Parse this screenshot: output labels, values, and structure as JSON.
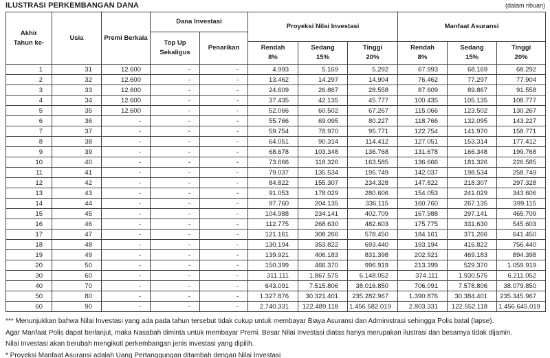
{
  "page": {
    "title": "ILUSTRASI PERKEMBANGAN DANA",
    "unit_note": "(dalam ribuan)"
  },
  "table": {
    "header": {
      "col_year_line1": "Akhir",
      "col_year_line2": "Tahun ke-",
      "col_age": "Usia",
      "col_premium": "Premi Berkala",
      "group_dana": "Dana Investasi",
      "col_topup_line1": "Top Up",
      "col_topup_line2": "Sekaligus",
      "col_penarikan": "Penarikan",
      "group_proyeksi": "Proyeksi Nilai Investasi",
      "group_manfaat": "Manfaat Asuransi",
      "sub_rendah": "Rendah",
      "sub_sedang": "Sedang",
      "sub_tinggi": "Tinggi",
      "pct_low": "8%",
      "pct_mid": "15%",
      "pct_high": "20%"
    },
    "column_keys": [
      "year",
      "age",
      "premium",
      "top-up",
      "withdrawal",
      "proj-low-8",
      "proj-mid-15",
      "proj-high-20",
      "benefit-low-8",
      "benefit-mid-15",
      "benefit-high-20"
    ],
    "rows": [
      [
        "1",
        "31",
        "12.600",
        "-",
        "-",
        "4.993",
        "5.169",
        "5.292",
        "67.993",
        "68.169",
        "68.292"
      ],
      [
        "2",
        "32",
        "12.600",
        "-",
        "-",
        "13.462",
        "14.297",
        "14.904",
        "76.462",
        "77.297",
        "77.904"
      ],
      [
        "3",
        "33",
        "12.600",
        "-",
        "-",
        "24.609",
        "26.867",
        "28.558",
        "87.609",
        "89.867",
        "91.558"
      ],
      [
        "4",
        "34",
        "12.600",
        "-",
        "-",
        "37.435",
        "42.135",
        "45.777",
        "100.435",
        "105.135",
        "108.777"
      ],
      [
        "5",
        "35",
        "12.600",
        "-",
        "-",
        "52.066",
        "60.502",
        "67.267",
        "115.066",
        "123.502",
        "130.267"
      ],
      [
        "6",
        "36",
        "-",
        "-",
        "-",
        "55.766",
        "69.095",
        "80.227",
        "118.766",
        "132.095",
        "143.227"
      ],
      [
        "7",
        "37",
        "-",
        "-",
        "-",
        "59.754",
        "78.970",
        "95.771",
        "122.754",
        "141.970",
        "158.771"
      ],
      [
        "8",
        "38",
        "-",
        "-",
        "-",
        "64.051",
        "90.314",
        "114.412",
        "127.051",
        "153.314",
        "177.412"
      ],
      [
        "9",
        "39",
        "-",
        "-",
        "-",
        "68.678",
        "103.348",
        "136.768",
        "131.678",
        "166.348",
        "199.768"
      ],
      [
        "10",
        "40",
        "-",
        "-",
        "-",
        "73.666",
        "118.326",
        "163.585",
        "136.666",
        "181.326",
        "226.585"
      ],
      [
        "11",
        "41",
        "-",
        "-",
        "-",
        "79.037",
        "135.534",
        "195.749",
        "142.037",
        "198.534",
        "258.749"
      ],
      [
        "12",
        "42",
        "-",
        "-",
        "-",
        "84.822",
        "155.307",
        "234.328",
        "147.822",
        "218.307",
        "297.328"
      ],
      [
        "13",
        "43",
        "-",
        "-",
        "-",
        "91.053",
        "178.029",
        "280.606",
        "154.053",
        "241.029",
        "343.606"
      ],
      [
        "14",
        "44",
        "-",
        "-",
        "-",
        "97.760",
        "204.135",
        "336.115",
        "160.760",
        "267.135",
        "399.115"
      ],
      [
        "15",
        "45",
        "-",
        "-",
        "-",
        "104.988",
        "234.141",
        "402.709",
        "167.988",
        "297.141",
        "465.709"
      ],
      [
        "16",
        "46",
        "-",
        "-",
        "-",
        "112.775",
        "268.630",
        "482.603",
        "175.775",
        "331.630",
        "545.603"
      ],
      [
        "17",
        "47",
        "-",
        "-",
        "-",
        "121.161",
        "308.266",
        "578.450",
        "184.161",
        "371.266",
        "641.450"
      ],
      [
        "18",
        "48",
        "-",
        "-",
        "-",
        "130.194",
        "353.822",
        "693.440",
        "193.194",
        "416.822",
        "756.440"
      ],
      [
        "19",
        "49",
        "-",
        "-",
        "-",
        "139.921",
        "406.183",
        "831.398",
        "202.921",
        "469.183",
        "894.398"
      ],
      [
        "20",
        "50",
        "-",
        "-",
        "-",
        "150.399",
        "466.370",
        "996.919",
        "213.399",
        "529.370",
        "1.059.919"
      ],
      [
        "30",
        "60",
        "-",
        "-",
        "-",
        "311.111",
        "1.867.575",
        "6.148.052",
        "374.111",
        "1.930.575",
        "6.211.052"
      ],
      [
        "40",
        "70",
        "-",
        "-",
        "-",
        "643.091",
        "7.515.806",
        "38.016.850",
        "706.091",
        "7.578.806",
        "38.079.850"
      ],
      [
        "50",
        "80",
        "-",
        "-",
        "-",
        "1.327.876",
        "30.321.401",
        "235.282.967",
        "1.390.876",
        "30.384.401",
        "235.345.967"
      ],
      [
        "60",
        "90",
        "-",
        "-",
        "-",
        "2.740.331",
        "122.489.118",
        "1.456.582.019",
        "2.803.331",
        "122.552.118",
        "1.456.645.019"
      ]
    ]
  },
  "footnotes": [
    "*** Menunjukkan bahwa Nilai Investasi yang ada pada tahun tersebut tidak cukup untuk membayar Biaya Asuransi dan Administrasi sehingga Polis batal (lapse).",
    "Agar Manfaat Polis dapat berlanjut, maka Nasabah diminta untuk membayar Premi. Besar Nilai Investasi diatas hanya merupakan ilustrasi dan besarnya tidak dijamin.",
    "Nilai Investasi akan berubah mengikuti perkembangan jenis investasi yang dipilih.",
    "* Proyeksi Manfaat Asuransi adalah Uang Pertanggungan ditambah dengan Nilai Investasi"
  ]
}
